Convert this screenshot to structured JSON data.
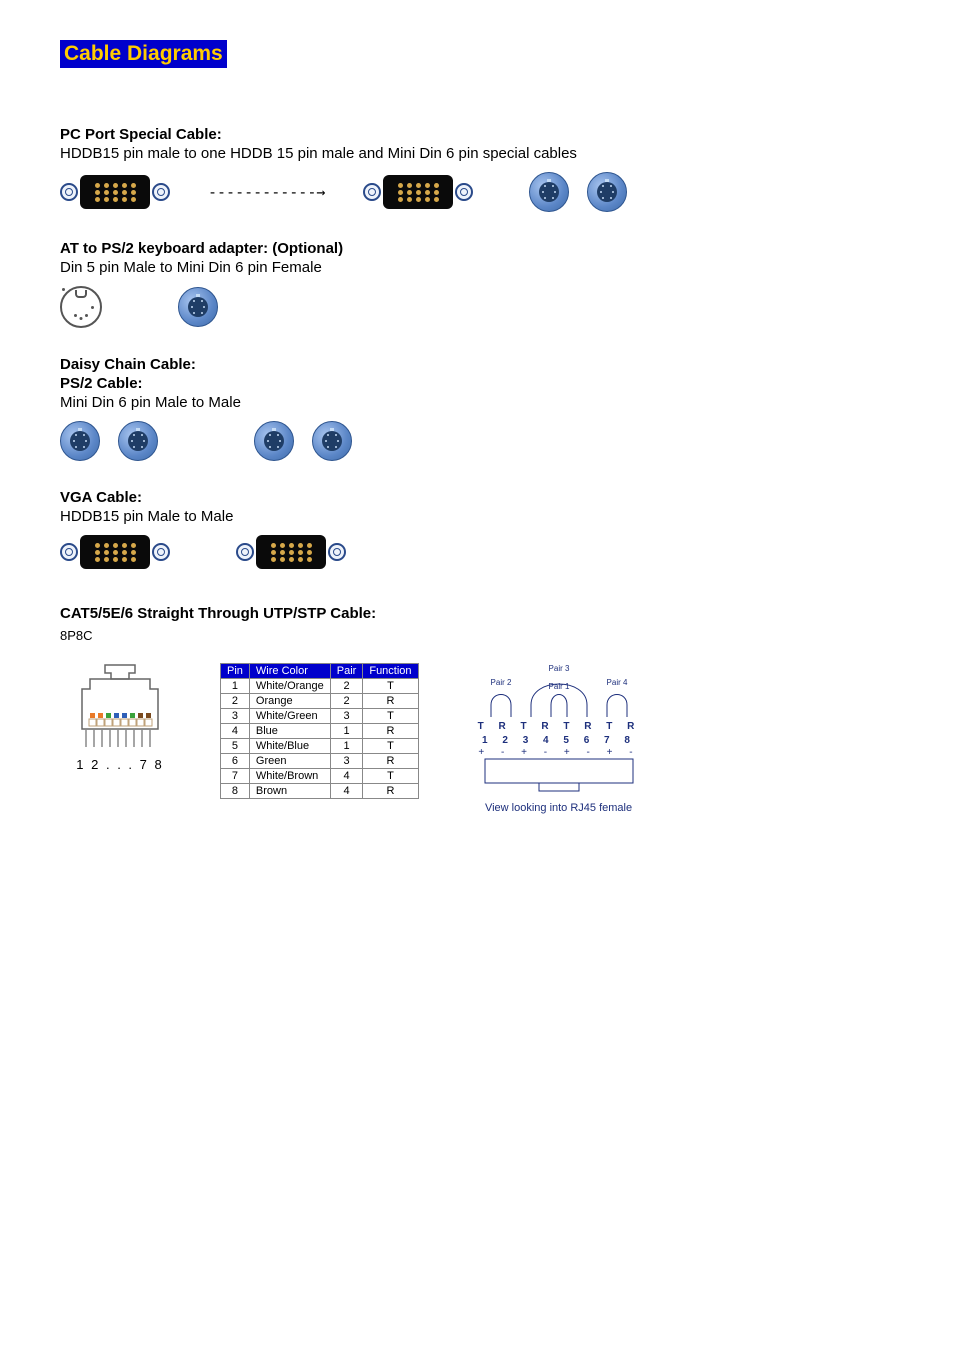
{
  "title": "Cable Diagrams",
  "sections": {
    "pcport": {
      "heading": "PC Port Special Cable:",
      "desc": "HDDB15 pin male to one HDDB 15 pin male and Mini Din 6 pin special cables",
      "arrow": "------------→"
    },
    "at_ps2": {
      "heading": "AT to PS/2 keyboard adapter: (Optional)",
      "desc": "Din 5 pin Male to Mini Din 6 pin Female"
    },
    "daisy": {
      "heading1": "Daisy Chain Cable:",
      "heading2": "PS/2 Cable:",
      "desc": "Mini Din 6 pin Male to Male"
    },
    "vga": {
      "heading": "VGA Cable:",
      "desc": "HDDB15 pin Male to Male"
    },
    "cat5": {
      "heading": "CAT5/5E/6 Straight Through UTP/STP Cable:",
      "sub": "8P8C",
      "plug_label": "1 2 . . . 7 8",
      "table": {
        "columns": [
          "Pin",
          "Wire Color",
          "Pair",
          "Function"
        ],
        "rows": [
          [
            "1",
            "White/Orange",
            "2",
            "T"
          ],
          [
            "2",
            "Orange",
            "2",
            "R"
          ],
          [
            "3",
            "White/Green",
            "3",
            "T"
          ],
          [
            "4",
            "Blue",
            "1",
            "R"
          ],
          [
            "5",
            "White/Blue",
            "1",
            "T"
          ],
          [
            "6",
            "Green",
            "3",
            "R"
          ],
          [
            "7",
            "White/Brown",
            "4",
            "T"
          ],
          [
            "8",
            "Brown",
            "4",
            "R"
          ]
        ]
      },
      "jack": {
        "pair_labels": [
          "Pair 2",
          "Pair 3",
          "Pair 1",
          "Pair 4"
        ],
        "tr_row": "T R T R T R T R",
        "num_row": "1 2 3 4 5 6 7 8",
        "sign_row": "+ - + - + - + -",
        "caption": "View looking into RJ45 female"
      },
      "contact_colors": [
        "#e97a28",
        "#e97a28",
        "#3aa23a",
        "#2e5fb8",
        "#2e5fb8",
        "#3aa23a",
        "#7a4a1e",
        "#7a4a1e"
      ]
    }
  },
  "colors": {
    "title_bg": "#0000cc",
    "title_fg": "#ffcc00",
    "table_header_bg": "#0000cc",
    "table_header_fg": "#ffffff",
    "jack_text": "#1d2f7c"
  }
}
